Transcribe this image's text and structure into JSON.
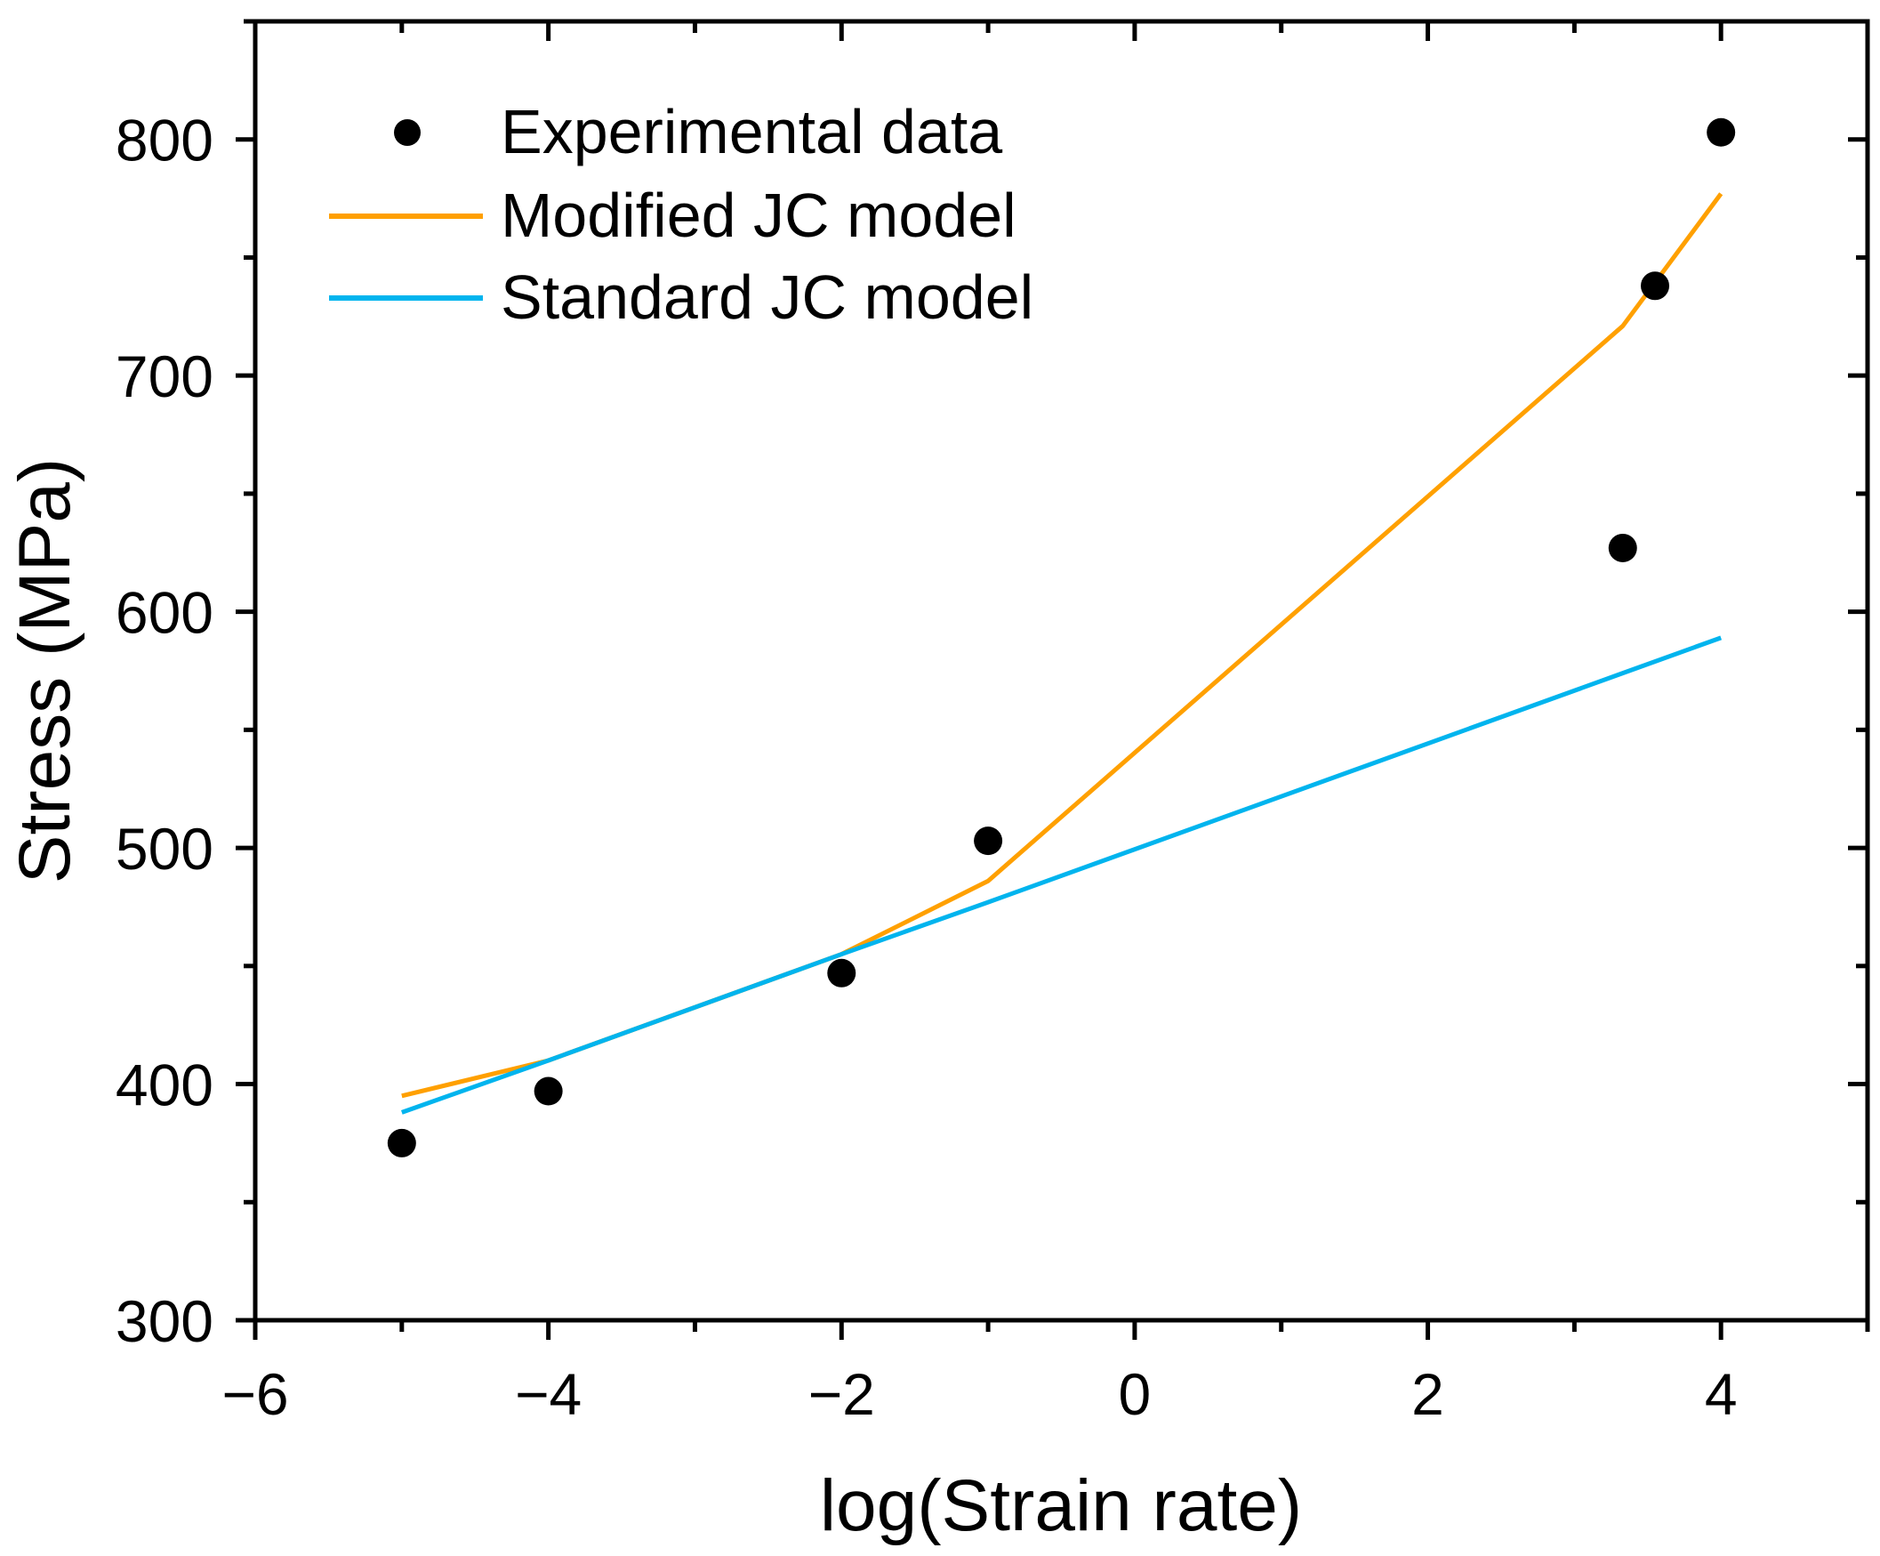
{
  "chart_data": {
    "type": "line",
    "title": "",
    "xlabel": "log(Strain rate)",
    "ylabel": "Stress (MPa)",
    "xlim": [
      -6,
      5
    ],
    "ylim": [
      300,
      850
    ],
    "xticks": [
      -6,
      -4,
      -2,
      0,
      2,
      4
    ],
    "xtick_labels": [
      "−6",
      "−4",
      "−2",
      "0",
      "2",
      "4"
    ],
    "yticks": [
      300,
      400,
      500,
      600,
      700,
      800
    ],
    "ytick_labels": [
      "300",
      "400",
      "500",
      "600",
      "700",
      "800"
    ],
    "grid": false,
    "legend_position": "top-left",
    "series": [
      {
        "name": "Experimental data",
        "kind": "scatter",
        "color": "#000000",
        "x": [
          -5,
          -4,
          -2,
          -1,
          3.33,
          3.55,
          4
        ],
        "y": [
          375,
          397,
          447,
          503,
          627,
          738,
          803
        ]
      },
      {
        "name": "Modified JC model",
        "kind": "line",
        "color": "#FFA000",
        "x": [
          -5,
          -4,
          -2,
          -1,
          3.33,
          4
        ],
        "y": [
          395,
          410,
          455,
          486,
          721,
          777
        ]
      },
      {
        "name": "Standard JC model",
        "kind": "line",
        "color": "#00B4EE",
        "x": [
          -5,
          -4,
          -2,
          -1,
          3.33,
          4
        ],
        "y": [
          388,
          410,
          455,
          477,
          574,
          589
        ]
      }
    ]
  }
}
